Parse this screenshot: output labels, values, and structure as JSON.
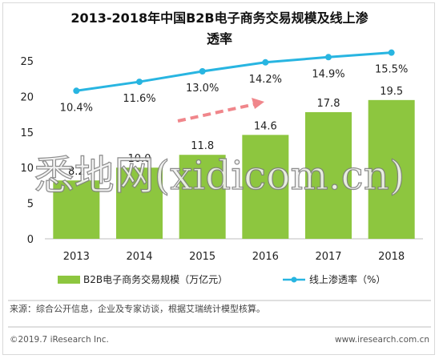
{
  "colors": {
    "bar": "#8dc63f",
    "line": "#28b5e1",
    "arrow": "#f0868b",
    "grid": "#e6e6e6"
  },
  "chart_data": {
    "type": "bar",
    "title_lines": [
      "2013-2018年中国B2B电子商务交易规模及线上渗",
      "透率"
    ],
    "categories": [
      "2013",
      "2014",
      "2015",
      "2016",
      "2017",
      "2018"
    ],
    "ylim": [
      0,
      25
    ],
    "yticks": [
      "0",
      "5",
      "10",
      "15",
      "20",
      "25"
    ],
    "series": [
      {
        "name": "B2B电子商务交易规模（万亿元）",
        "type": "bar",
        "values": [
          8.2,
          10.0,
          11.8,
          14.6,
          17.8,
          19.5
        ],
        "labels": [
          "8.2",
          "10.0",
          "11.8",
          "14.6",
          "17.8",
          "19.5"
        ]
      },
      {
        "name": "线上渗透率（%）",
        "type": "line",
        "values": [
          10.4,
          11.6,
          13.0,
          14.2,
          14.9,
          15.5
        ],
        "labels": [
          "10.4%",
          "11.6%",
          "13.0%",
          "14.2%",
          "14.9%",
          "15.5%"
        ]
      }
    ],
    "grid": false,
    "legend_position": "bottom"
  },
  "source_text": "来源：综合公开信息，企业及专家访谈，根据艾瑞统计模型核算。",
  "footer": {
    "left": "©2019.7 iResearch Inc.",
    "right": "www.iresearch.com.cn"
  },
  "watermark_text": "悉地网(xidicom.cn)"
}
